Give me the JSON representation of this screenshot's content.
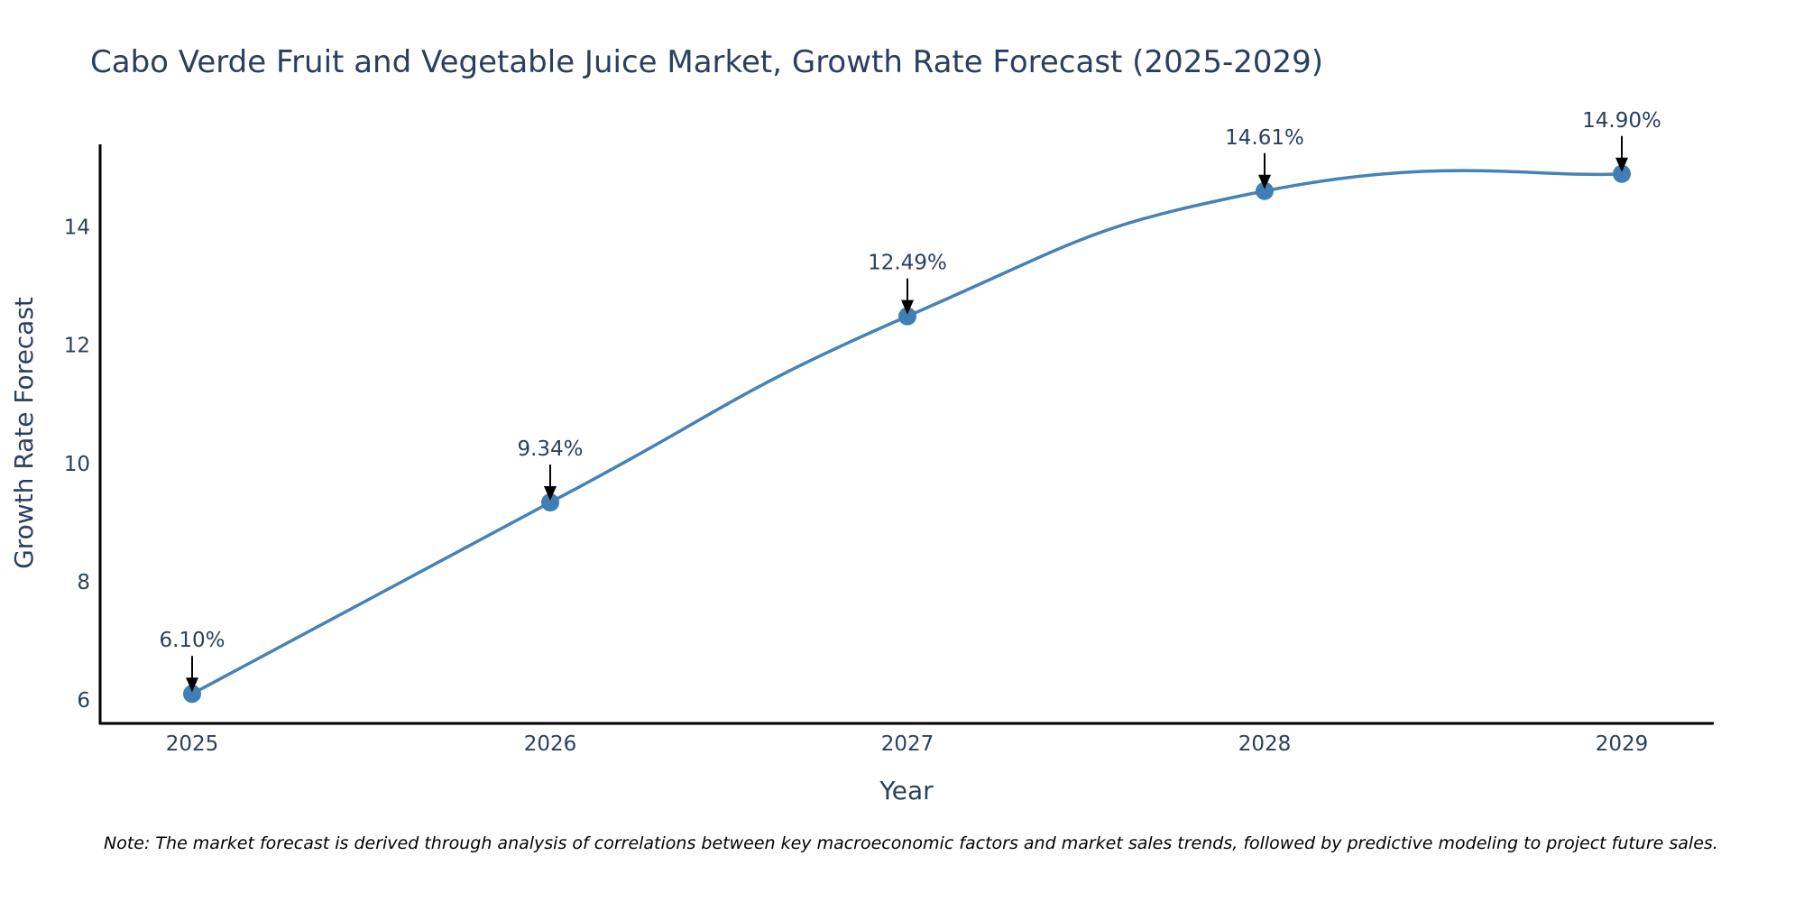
{
  "chart_data": {
    "type": "line",
    "title": "Cabo Verde Fruit and Vegetable Juice Market, Growth Rate Forecast (2025-2029)",
    "xlabel": "Year",
    "ylabel": "Growth Rate Forecast",
    "categories": [
      "2025",
      "2026",
      "2027",
      "2028",
      "2029"
    ],
    "series": [
      {
        "name": "Growth Rate Forecast",
        "values": [
          6.1,
          9.34,
          12.49,
          14.61,
          14.9
        ],
        "labels": [
          "6.10%",
          "9.34%",
          "12.49%",
          "14.61%",
          "14.90%"
        ]
      }
    ],
    "yticks": [
      6,
      8,
      10,
      12,
      14
    ],
    "ylim": [
      5.6,
      15.4
    ],
    "grid": false,
    "note": "Note: The market forecast is derived through analysis of correlations between key macroeconomic factors and market sales trends, followed by predictive modeling to project future sales.",
    "colors": {
      "line": "#4682b4",
      "marker": "#3f7fb5",
      "text": "#2a3f5f",
      "axis": "#000000"
    }
  }
}
